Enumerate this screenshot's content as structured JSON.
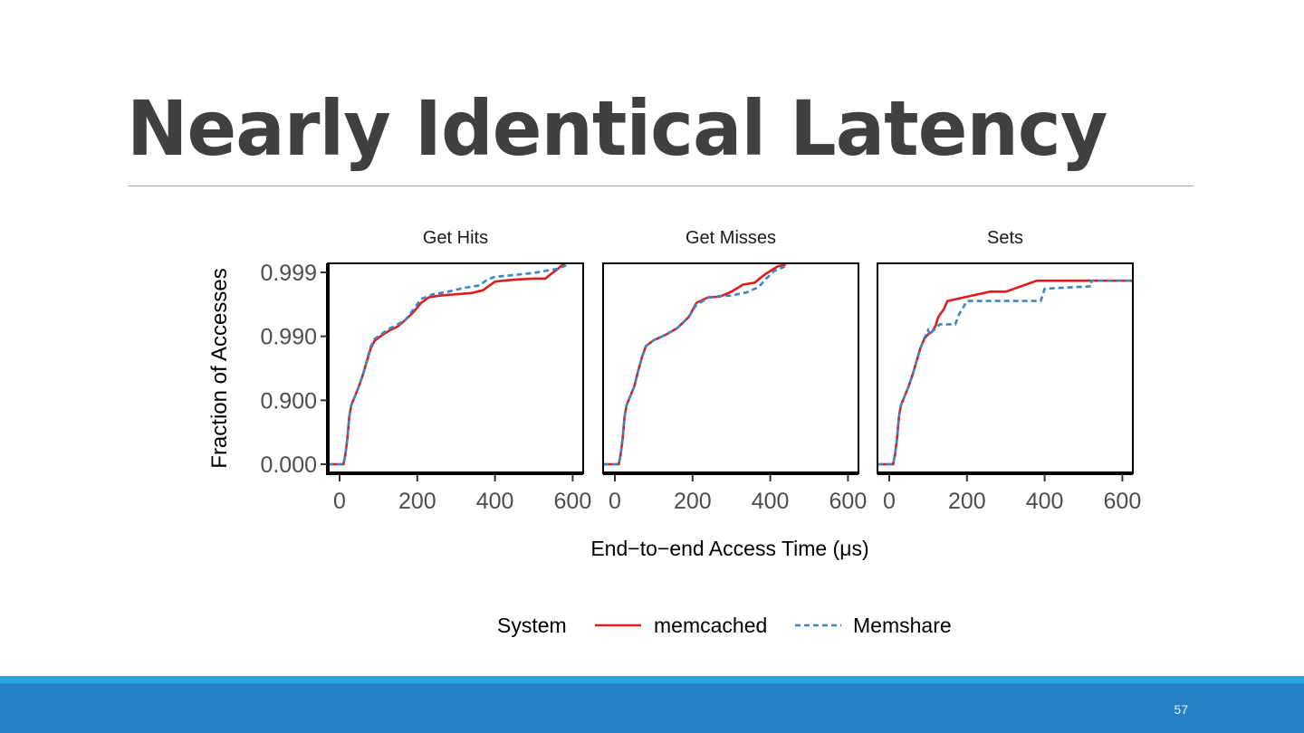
{
  "slide": {
    "title": "Nearly Identical Latency",
    "page_number": "57"
  },
  "colors": {
    "title": "#404040",
    "footer_bar": "#2581c4",
    "footer_accent": "#2ba6dc",
    "memcached": "#e41a1c",
    "memshare": "#3b86c6"
  },
  "chart_data": {
    "type": "line",
    "xlabel": "End−to−end Access Time (μs)",
    "ylabel": "Fraction of Accesses",
    "y_scale": "log-complement (1 - y)",
    "xlim": [
      -30,
      640
    ],
    "x_ticks": [
      0,
      200,
      400,
      600
    ],
    "x_tick_labels": [
      "0",
      "200",
      "400",
      "600"
    ],
    "y_ticks": [
      0.0,
      0.9,
      0.99,
      0.999
    ],
    "y_tick_labels": [
      "0.000",
      "0.900",
      "0.990",
      "0.999"
    ],
    "grid": false,
    "legend": {
      "position": "bottom",
      "title": "System",
      "entries": [
        "memcached",
        "Memshare"
      ]
    },
    "panels": [
      {
        "title": "Get Hits",
        "series": [
          {
            "name": "memcached",
            "style": "solid",
            "points": [
              [
                -30,
                0.0
              ],
              [
                10,
                0.0
              ],
              [
                15,
                0.3
              ],
              [
                20,
                0.6
              ],
              [
                25,
                0.82
              ],
              [
                30,
                0.88
              ],
              [
                40,
                0.915
              ],
              [
                50,
                0.94
              ],
              [
                60,
                0.96
              ],
              [
                70,
                0.975
              ],
              [
                80,
                0.9845
              ],
              [
                90,
                0.9882
              ],
              [
                110,
                0.9905
              ],
              [
                130,
                0.992
              ],
              [
                150,
                0.993
              ],
              [
                170,
                0.9945
              ],
              [
                190,
                0.9958
              ],
              [
                210,
                0.997
              ],
              [
                230,
                0.99755
              ],
              [
                260,
                0.9977
              ],
              [
                300,
                0.9978
              ],
              [
                340,
                0.9979
              ],
              [
                370,
                0.9981
              ],
              [
                380,
                0.9983
              ],
              [
                400,
                0.9986
              ],
              [
                420,
                0.99865
              ],
              [
                450,
                0.9987
              ],
              [
                500,
                0.99875
              ],
              [
                530,
                0.99875
              ],
              [
                545,
                0.99895
              ],
              [
                560,
                0.9991
              ],
              [
                575,
                0.99925
              ],
              [
                590,
                0.99935
              ]
            ]
          },
          {
            "name": "Memshare",
            "style": "dashed",
            "points": [
              [
                -30,
                0.0
              ],
              [
                10,
                0.0
              ],
              [
                15,
                0.3
              ],
              [
                20,
                0.6
              ],
              [
                25,
                0.82
              ],
              [
                30,
                0.88
              ],
              [
                40,
                0.915
              ],
              [
                50,
                0.94
              ],
              [
                60,
                0.96
              ],
              [
                70,
                0.976
              ],
              [
                80,
                0.9855
              ],
              [
                90,
                0.989
              ],
              [
                110,
                0.991
              ],
              [
                130,
                0.9925
              ],
              [
                150,
                0.9935
              ],
              [
                170,
                0.9945
              ],
              [
                190,
                0.9962
              ],
              [
                210,
                0.9974
              ],
              [
                240,
                0.9978
              ],
              [
                280,
                0.998
              ],
              [
                320,
                0.99825
              ],
              [
                360,
                0.9984
              ],
              [
                380,
                0.9987
              ],
              [
                400,
                0.99883
              ],
              [
                450,
                0.9989
              ],
              [
                500,
                0.99898
              ],
              [
                560,
                0.99912
              ],
              [
                590,
                0.99925
              ]
            ]
          }
        ]
      },
      {
        "title": "Get Misses",
        "series": [
          {
            "name": "memcached",
            "style": "solid",
            "points": [
              [
                -30,
                0.0
              ],
              [
                10,
                0.0
              ],
              [
                15,
                0.3
              ],
              [
                20,
                0.6
              ],
              [
                25,
                0.82
              ],
              [
                30,
                0.88
              ],
              [
                40,
                0.915
              ],
              [
                50,
                0.94
              ],
              [
                60,
                0.965
              ],
              [
                70,
                0.979
              ],
              [
                80,
                0.9858
              ],
              [
                100,
                0.9885
              ],
              [
                130,
                0.9905
              ],
              [
                160,
                0.9925
              ],
              [
                190,
                0.995
              ],
              [
                210,
                0.997
              ],
              [
                240,
                0.99755
              ],
              [
                270,
                0.9976
              ],
              [
                300,
                0.998
              ],
              [
                330,
                0.99845
              ],
              [
                360,
                0.99855
              ],
              [
                380,
                0.99885
              ],
              [
                400,
                0.99905
              ],
              [
                420,
                0.9992
              ],
              [
                440,
                0.99925
              ]
            ]
          },
          {
            "name": "Memshare",
            "style": "dashed",
            "points": [
              [
                -30,
                0.0
              ],
              [
                10,
                0.0
              ],
              [
                15,
                0.3
              ],
              [
                20,
                0.6
              ],
              [
                25,
                0.82
              ],
              [
                30,
                0.88
              ],
              [
                40,
                0.915
              ],
              [
                50,
                0.94
              ],
              [
                60,
                0.965
              ],
              [
                70,
                0.979
              ],
              [
                80,
                0.9858
              ],
              [
                100,
                0.9885
              ],
              [
                130,
                0.9905
              ],
              [
                160,
                0.9925
              ],
              [
                190,
                0.995
              ],
              [
                210,
                0.9968
              ],
              [
                240,
                0.9975
              ],
              [
                270,
                0.99765
              ],
              [
                300,
                0.9977
              ],
              [
                340,
                0.99795
              ],
              [
                370,
                0.9983
              ],
              [
                390,
                0.99875
              ],
              [
                410,
                0.99905
              ],
              [
                440,
                0.9992
              ]
            ]
          }
        ]
      },
      {
        "title": "Sets",
        "series": [
          {
            "name": "memcached",
            "style": "solid",
            "points": [
              [
                -30,
                0.0
              ],
              [
                10,
                0.0
              ],
              [
                15,
                0.3
              ],
              [
                20,
                0.6
              ],
              [
                25,
                0.82
              ],
              [
                30,
                0.88
              ],
              [
                40,
                0.915
              ],
              [
                50,
                0.94
              ],
              [
                60,
                0.96
              ],
              [
                70,
                0.975
              ],
              [
                80,
                0.9845
              ],
              [
                90,
                0.989
              ],
              [
                100,
                0.9907
              ],
              [
                110,
                0.9915
              ],
              [
                120,
                0.9933
              ],
              [
                125,
                0.9948
              ],
              [
                130,
                0.9954
              ],
              [
                140,
                0.9962
              ],
              [
                150,
                0.9972
              ],
              [
                200,
                0.9976
              ],
              [
                260,
                0.998
              ],
              [
                300,
                0.998
              ],
              [
                380,
                0.99865
              ],
              [
                600,
                0.99865
              ],
              [
                640,
                0.99865
              ]
            ]
          },
          {
            "name": "Memshare",
            "style": "dashed",
            "points": [
              [
                -30,
                0.0
              ],
              [
                10,
                0.0
              ],
              [
                15,
                0.3
              ],
              [
                20,
                0.6
              ],
              [
                25,
                0.82
              ],
              [
                30,
                0.88
              ],
              [
                40,
                0.915
              ],
              [
                50,
                0.94
              ],
              [
                60,
                0.96
              ],
              [
                70,
                0.975
              ],
              [
                80,
                0.9845
              ],
              [
                90,
                0.9892
              ],
              [
                100,
                0.992
              ],
              [
                105,
                0.9905
              ],
              [
                110,
                0.9915
              ],
              [
                130,
                0.9935
              ],
              [
                170,
                0.9935
              ],
              [
                180,
                0.9955
              ],
              [
                200,
                0.9972
              ],
              [
                310,
                0.9972
              ],
              [
                390,
                0.9972
              ],
              [
                400,
                0.9982
              ],
              [
                520,
                0.99835
              ],
              [
                520,
                0.99865
              ],
              [
                640,
                0.99865
              ]
            ]
          }
        ]
      }
    ]
  }
}
